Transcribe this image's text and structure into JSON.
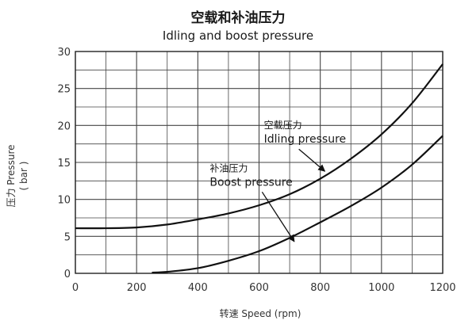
{
  "chart_data": {
    "type": "line",
    "title": "空载和补油压力",
    "subtitle": "Idling and boost pressure",
    "xlabel": "转速 Speed (rpm)",
    "ylabel": "压力 Pressure",
    "ylabel_unit": "( bar )",
    "xlim": [
      0,
      1200
    ],
    "ylim": [
      0,
      30
    ],
    "xticks": [
      0,
      200,
      400,
      600,
      800,
      1000,
      1200
    ],
    "yticks": [
      0,
      5,
      10,
      15,
      20,
      25,
      30
    ],
    "x_minor_step": 100,
    "y_minor_step": 2.5,
    "grid": true,
    "series": [
      {
        "name": "Idling pressure",
        "name_zh": "空载压力",
        "x": [
          0,
          100,
          200,
          300,
          400,
          500,
          600,
          700,
          800,
          900,
          1000,
          1100,
          1200
        ],
        "y": [
          6.1,
          6.1,
          6.2,
          6.6,
          7.3,
          8.1,
          9.2,
          10.7,
          12.8,
          15.5,
          18.8,
          23.0,
          28.3
        ]
      },
      {
        "name": "Boost pressure",
        "name_zh": "补油压力",
        "x": [
          250,
          300,
          400,
          500,
          600,
          700,
          800,
          900,
          1000,
          1100,
          1200
        ],
        "y": [
          0.1,
          0.2,
          0.7,
          1.7,
          3.0,
          4.8,
          6.9,
          9.1,
          11.6,
          14.7,
          18.6
        ]
      }
    ],
    "annotations": [
      {
        "series": 0,
        "text_zh": "空载压力",
        "text_en": "Idling pressure",
        "arrow_from": [
          730,
          16.8
        ],
        "arrow_to": [
          815,
          13.8
        ]
      },
      {
        "series": 1,
        "text_zh": "补油压力",
        "text_en": "Boost pressure",
        "arrow_from": [
          610,
          11.0
        ],
        "arrow_to": [
          715,
          4.3
        ]
      }
    ]
  }
}
